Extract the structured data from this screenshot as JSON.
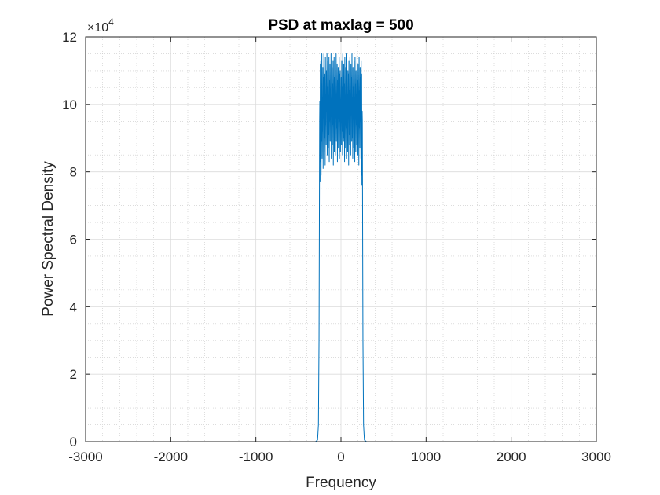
{
  "chart_data": {
    "type": "line",
    "title": "PSD at maxlag = 500",
    "xlabel": "Frequency",
    "ylabel": "Power Spectral Density",
    "xlim": [
      -3000,
      3000
    ],
    "ylim": [
      0,
      12
    ],
    "y_multiplier_label": "×10",
    "y_multiplier_exponent": "4",
    "x_ticks": [
      -3000,
      -2000,
      -1000,
      0,
      1000,
      2000,
      3000
    ],
    "x_tick_labels": [
      "-3000",
      "-2000",
      "-1000",
      "0",
      "1000",
      "2000",
      "3000"
    ],
    "y_ticks": [
      0,
      2,
      4,
      6,
      8,
      10,
      12
    ],
    "y_tick_labels": [
      "0",
      "2",
      "4",
      "6",
      "8",
      "10",
      "12"
    ],
    "grid": true,
    "minor_grid": true,
    "line_color": "#0072bd",
    "series": [
      {
        "x_range": [
          -2500,
          2500
        ],
        "passband": [
          -250,
          250
        ],
        "points": [
          [
            -2500,
            0.0
          ],
          [
            -300,
            0.0
          ],
          [
            -275,
            0.05
          ],
          [
            -265,
            0.5
          ],
          [
            -258,
            3.0
          ],
          [
            -254,
            6.5
          ],
          [
            -251,
            9.5
          ],
          [
            -249,
            10.1
          ],
          [
            -246,
            7.7
          ],
          [
            -243,
            11.2
          ],
          [
            -240,
            8.3
          ],
          [
            -237,
            11.3
          ],
          [
            -234,
            7.9
          ],
          [
            -231,
            10.6
          ],
          [
            -228,
            8.9
          ],
          [
            -225,
            11.5
          ],
          [
            -222,
            8.4
          ],
          [
            -219,
            10.2
          ],
          [
            -216,
            9.2
          ],
          [
            -213,
            11.1
          ],
          [
            -210,
            8.1
          ],
          [
            -207,
            10.8
          ],
          [
            -204,
            9.6
          ],
          [
            -201,
            11.5
          ],
          [
            -198,
            8.6
          ],
          [
            -195,
            10.0
          ],
          [
            -192,
            9.0
          ],
          [
            -189,
            10.9
          ],
          [
            -186,
            8.2
          ],
          [
            -183,
            11.4
          ],
          [
            -180,
            9.4
          ],
          [
            -177,
            10.3
          ],
          [
            -174,
            8.8
          ],
          [
            -171,
            11.0
          ],
          [
            -168,
            9.8
          ],
          [
            -165,
            11.5
          ],
          [
            -162,
            8.5
          ],
          [
            -159,
            10.5
          ],
          [
            -156,
            9.3
          ],
          [
            -153,
            11.3
          ],
          [
            -150,
            8.7
          ],
          [
            -147,
            10.1
          ],
          [
            -144,
            9.1
          ],
          [
            -141,
            11.4
          ],
          [
            -138,
            8.3
          ],
          [
            -135,
            10.7
          ],
          [
            -132,
            9.5
          ],
          [
            -129,
            11.2
          ],
          [
            -126,
            8.9
          ],
          [
            -123,
            10.4
          ],
          [
            -120,
            9.7
          ],
          [
            -117,
            11.5
          ],
          [
            -114,
            8.4
          ],
          [
            -111,
            10.0
          ],
          [
            -108,
            9.2
          ],
          [
            -105,
            11.1
          ],
          [
            -102,
            8.8
          ],
          [
            -99,
            10.6
          ],
          [
            -96,
            9.4
          ],
          [
            -93,
            11.3
          ],
          [
            -90,
            8.2
          ],
          [
            -87,
            10.2
          ],
          [
            -84,
            9.9
          ],
          [
            -81,
            11.4
          ],
          [
            -78,
            8.6
          ],
          [
            -75,
            10.8
          ],
          [
            -72,
            9.0
          ],
          [
            -69,
            11.0
          ],
          [
            -66,
            8.5
          ],
          [
            -63,
            10.3
          ],
          [
            -60,
            9.6
          ],
          [
            -57,
            11.5
          ],
          [
            -54,
            8.9
          ],
          [
            -51,
            10.0
          ],
          [
            -48,
            9.3
          ],
          [
            -45,
            11.2
          ],
          [
            -42,
            8.3
          ],
          [
            -39,
            10.7
          ],
          [
            -36,
            9.8
          ],
          [
            -33,
            11.1
          ],
          [
            -30,
            8.7
          ],
          [
            -27,
            10.4
          ],
          [
            -24,
            9.1
          ],
          [
            -21,
            11.4
          ],
          [
            -18,
            8.4
          ],
          [
            -15,
            10.9
          ],
          [
            -12,
            9.5
          ],
          [
            -9,
            11.0
          ],
          [
            -6,
            8.6
          ],
          [
            -3,
            10.1
          ],
          [
            0,
            9.6
          ],
          [
            3,
            10.8
          ],
          [
            6,
            8.8
          ],
          [
            9,
            11.3
          ],
          [
            12,
            9.2
          ],
          [
            15,
            10.5
          ],
          [
            18,
            8.5
          ],
          [
            21,
            11.5
          ],
          [
            24,
            9.7
          ],
          [
            27,
            10.2
          ],
          [
            30,
            8.9
          ],
          [
            33,
            11.2
          ],
          [
            36,
            9.0
          ],
          [
            39,
            10.6
          ],
          [
            42,
            8.3
          ],
          [
            45,
            11.4
          ],
          [
            48,
            9.4
          ],
          [
            51,
            10.0
          ],
          [
            54,
            8.7
          ],
          [
            57,
            11.1
          ],
          [
            60,
            9.9
          ],
          [
            63,
            10.7
          ],
          [
            66,
            8.4
          ],
          [
            69,
            11.5
          ],
          [
            72,
            9.3
          ],
          [
            75,
            10.3
          ],
          [
            78,
            8.6
          ],
          [
            81,
            11.0
          ],
          [
            84,
            9.8
          ],
          [
            87,
            10.9
          ],
          [
            90,
            8.2
          ],
          [
            93,
            11.3
          ],
          [
            96,
            9.1
          ],
          [
            99,
            10.4
          ],
          [
            102,
            8.8
          ],
          [
            105,
            11.4
          ],
          [
            108,
            9.5
          ],
          [
            111,
            10.1
          ],
          [
            114,
            8.5
          ],
          [
            117,
            11.2
          ],
          [
            120,
            9.7
          ],
          [
            123,
            10.8
          ],
          [
            126,
            8.9
          ],
          [
            129,
            11.5
          ],
          [
            132,
            9.0
          ],
          [
            135,
            10.2
          ],
          [
            138,
            8.4
          ],
          [
            141,
            11.1
          ],
          [
            144,
            9.6
          ],
          [
            147,
            10.5
          ],
          [
            150,
            8.7
          ],
          [
            153,
            11.3
          ],
          [
            156,
            9.2
          ],
          [
            159,
            10.0
          ],
          [
            162,
            8.3
          ],
          [
            165,
            11.4
          ],
          [
            168,
            9.9
          ],
          [
            171,
            10.6
          ],
          [
            174,
            8.6
          ],
          [
            177,
            11.0
          ],
          [
            180,
            9.4
          ],
          [
            183,
            10.3
          ],
          [
            186,
            8.8
          ],
          [
            189,
            11.5
          ],
          [
            192,
            9.1
          ],
          [
            195,
            10.7
          ],
          [
            198,
            8.5
          ],
          [
            201,
            11.2
          ],
          [
            204,
            9.8
          ],
          [
            207,
            10.1
          ],
          [
            210,
            8.2
          ],
          [
            213,
            11.4
          ],
          [
            216,
            9.3
          ],
          [
            219,
            10.4
          ],
          [
            222,
            8.7
          ],
          [
            225,
            11.1
          ],
          [
            228,
            9.5
          ],
          [
            231,
            10.8
          ],
          [
            234,
            8.4
          ],
          [
            237,
            11.3
          ],
          [
            240,
            7.9
          ],
          [
            243,
            10.9
          ],
          [
            246,
            7.6
          ],
          [
            249,
            9.8
          ],
          [
            251,
            9.5
          ],
          [
            254,
            6.5
          ],
          [
            258,
            3.0
          ],
          [
            265,
            0.5
          ],
          [
            275,
            0.05
          ],
          [
            300,
            0.0
          ],
          [
            2500,
            0.0
          ]
        ]
      }
    ]
  }
}
